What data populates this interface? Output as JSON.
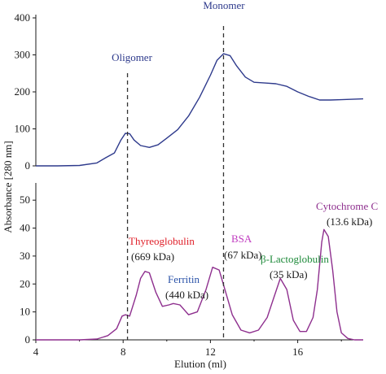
{
  "chart_data": [
    {
      "type": "line",
      "panel": "top",
      "ylim": [
        0,
        400
      ],
      "yticks": [
        0,
        100,
        200,
        300,
        400
      ],
      "xlim": [
        4,
        19
      ],
      "color": "#2e3a8c",
      "annotations": [
        {
          "text": "Monomer",
          "color": "#2e3a8c"
        },
        {
          "text": "Oligomer",
          "color": "#2e3a8c"
        }
      ],
      "series": [
        {
          "x": [
            4.0,
            5.0,
            6.0,
            6.8,
            7.2,
            7.6,
            7.9,
            8.1,
            8.3,
            8.5,
            8.8,
            9.2,
            9.6,
            10.0,
            10.5,
            11.0,
            11.5,
            12.0,
            12.3,
            12.6,
            12.9,
            13.2,
            13.6,
            14.0,
            14.5,
            15.0,
            15.5,
            16.0,
            16.5,
            17.0,
            17.5,
            18.0,
            18.5,
            19.0
          ],
          "y": [
            0,
            0,
            1,
            8,
            22,
            35,
            70,
            88,
            87,
            70,
            55,
            50,
            57,
            75,
            98,
            135,
            185,
            245,
            285,
            303,
            298,
            270,
            240,
            226,
            224,
            222,
            215,
            200,
            188,
            178,
            178,
            179,
            180,
            181
          ]
        }
      ]
    },
    {
      "type": "line",
      "panel": "bottom",
      "ylim": [
        0,
        55
      ],
      "yticks": [
        0,
        10,
        20,
        30,
        40,
        50
      ],
      "xlim": [
        4,
        19
      ],
      "xticks": [
        4,
        8,
        12,
        16
      ],
      "xlabel": "Elution (ml)",
      "color": "#8e2f8e",
      "annotations": [
        {
          "text": "Thyreoglobulin",
          "color": "#e0202a"
        },
        {
          "text": "(669 kDa)",
          "color": "#1a1a1a"
        },
        {
          "text": "Ferritin",
          "color": "#2a52a8"
        },
        {
          "text": "(440 kDa)",
          "color": "#1a1a1a"
        },
        {
          "text": "BSA",
          "color": "#c03cc0"
        },
        {
          "text": "(67 kDa)",
          "color": "#1a1a1a"
        },
        {
          "text": "β-Lactoglobulin",
          "color": "#1e8a3a"
        },
        {
          "text": "(35 kDa)",
          "color": "#1a1a1a"
        },
        {
          "text": "Cytochrome C",
          "color": "#8e2f8e"
        },
        {
          "text": "(13.6 kDa)",
          "color": "#1a1a1a"
        }
      ],
      "series": [
        {
          "x": [
            4.0,
            5.0,
            6.0,
            6.8,
            7.3,
            7.7,
            7.95,
            8.1,
            8.3,
            8.6,
            8.8,
            9.0,
            9.2,
            9.5,
            9.8,
            10.1,
            10.3,
            10.6,
            11.0,
            11.4,
            11.8,
            12.1,
            12.4,
            12.7,
            13.0,
            13.4,
            13.8,
            14.2,
            14.6,
            14.9,
            15.2,
            15.5,
            15.8,
            16.1,
            16.4,
            16.7,
            16.9,
            17.1,
            17.2,
            17.4,
            17.6,
            17.8,
            18.0,
            18.3,
            18.6,
            19.0
          ],
          "y": [
            0,
            0,
            0,
            0.3,
            1.5,
            4,
            8.5,
            9,
            8.5,
            16,
            22,
            24.5,
            24,
            17,
            12,
            12.5,
            13,
            12.5,
            9,
            10,
            18,
            26,
            25,
            17,
            9,
            3.5,
            2.5,
            3.5,
            8,
            15,
            22,
            18,
            7,
            3,
            3,
            8,
            18,
            35,
            39.5,
            37,
            25,
            10,
            2.5,
            0.5,
            0,
            0
          ]
        }
      ]
    }
  ],
  "shared": {
    "ylabel": "Absorbance [280 nm]",
    "dashed_lines_x": [
      8.2,
      12.6
    ]
  },
  "colors": {
    "axis": "#1a1a1a",
    "dashed": "#333333"
  }
}
